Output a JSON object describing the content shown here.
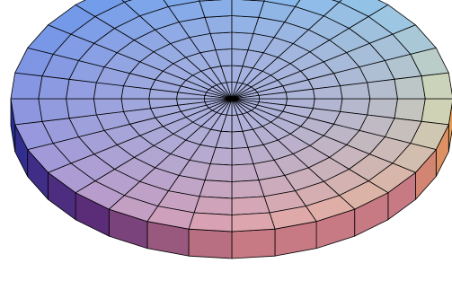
{
  "surface": {
    "shape": "flattened-disk",
    "radial_divisions": 8,
    "angular_divisions": 32,
    "side_facets": 32,
    "colors": {
      "top_left": "#5b8ff0",
      "top_right": "#8fd4f4",
      "center": "#a9b8ec",
      "bottom_left": "#b49ad6",
      "bottom_center": "#dfa2ae",
      "bottom_right": "#f2b98e",
      "rim_right": "#e6eaa8",
      "side_left": "#1e2f9a",
      "side_front_left": "#5a2c78",
      "side_front": "#c77a84",
      "side_right": "#eea04a",
      "edge": "#000000"
    }
  }
}
